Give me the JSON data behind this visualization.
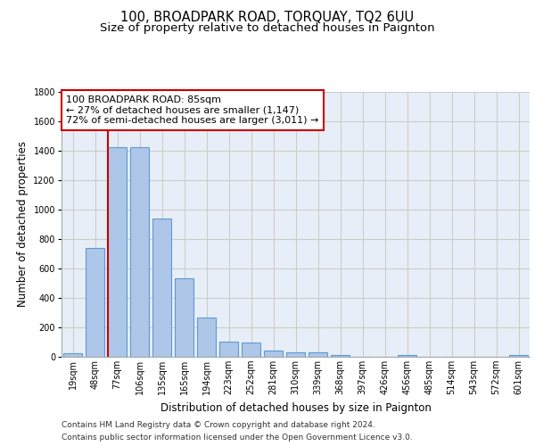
{
  "title": "100, BROADPARK ROAD, TORQUAY, TQ2 6UU",
  "subtitle": "Size of property relative to detached houses in Paignton",
  "xlabel": "Distribution of detached houses by size in Paignton",
  "ylabel": "Number of detached properties",
  "categories": [
    "19sqm",
    "48sqm",
    "77sqm",
    "106sqm",
    "135sqm",
    "165sqm",
    "194sqm",
    "223sqm",
    "252sqm",
    "281sqm",
    "310sqm",
    "339sqm",
    "368sqm",
    "397sqm",
    "426sqm",
    "456sqm",
    "485sqm",
    "514sqm",
    "543sqm",
    "572sqm",
    "601sqm"
  ],
  "values": [
    22,
    740,
    1420,
    1420,
    940,
    530,
    265,
    105,
    95,
    40,
    28,
    28,
    12,
    0,
    0,
    14,
    0,
    0,
    0,
    0,
    14
  ],
  "bar_color": "#aec6e8",
  "bar_edge_color": "#5b9bd5",
  "vline_x": 1.575,
  "vline_color": "#cc0000",
  "annotation_text": "100 BROADPARK ROAD: 85sqm\n← 27% of detached houses are smaller (1,147)\n72% of semi-detached houses are larger (3,011) →",
  "annotation_box_color": "#ffffff",
  "annotation_box_edge_color": "#cc0000",
  "ylim": [
    0,
    1800
  ],
  "yticks": [
    0,
    200,
    400,
    600,
    800,
    1000,
    1200,
    1400,
    1600,
    1800
  ],
  "grid_color": "#cccccc",
  "background_color": "#ffffff",
  "footer_line1": "Contains HM Land Registry data © Crown copyright and database right 2024.",
  "footer_line2": "Contains public sector information licensed under the Open Government Licence v3.0.",
  "title_fontsize": 10.5,
  "subtitle_fontsize": 9.5,
  "xlabel_fontsize": 8.5,
  "ylabel_fontsize": 8.5,
  "tick_fontsize": 7,
  "footer_fontsize": 6.5,
  "annotation_fontsize": 8
}
